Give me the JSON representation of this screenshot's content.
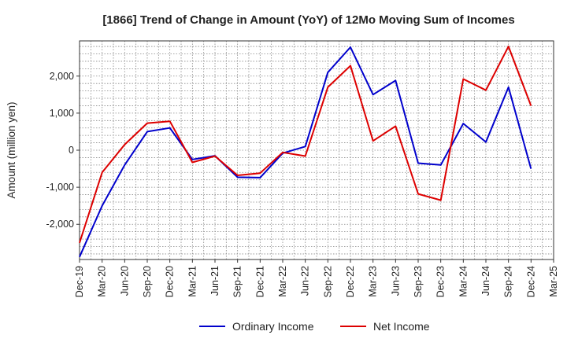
{
  "chart_data": {
    "type": "line",
    "title": "[1866]  Trend of Change in Amount (YoY) of 12Mo Moving Sum of Incomes",
    "ylabel": "Amount (million yen)",
    "xlabel": "",
    "x": [
      "Dec-19",
      "Mar-20",
      "Jun-20",
      "Sep-20",
      "Dec-20",
      "Mar-21",
      "Jun-21",
      "Sep-21",
      "Dec-21",
      "Mar-22",
      "Jun-22",
      "Sep-22",
      "Dec-22",
      "Mar-23",
      "Jun-23",
      "Sep-23",
      "Dec-23",
      "Mar-24",
      "Jun-24",
      "Sep-24",
      "Dec-24",
      "Mar-25"
    ],
    "ylim": [
      -2950,
      2950
    ],
    "yticks": [
      -2000,
      -1000,
      0,
      1000,
      2000
    ],
    "ytick_labels": [
      "-2,000",
      "-1,000",
      "0",
      "1,000",
      "2,000"
    ],
    "grid": true,
    "legend_position": "bottom-center",
    "series": [
      {
        "name": "Ordinary Income",
        "color": "#0000cc",
        "values": [
          -2880,
          -1500,
          -400,
          500,
          600,
          -250,
          -150,
          -730,
          -740,
          -80,
          100,
          2100,
          2780,
          1500,
          1880,
          -350,
          -400,
          720,
          220,
          1700,
          -500,
          null
        ]
      },
      {
        "name": "Net Income",
        "color": "#dd0000",
        "values": [
          -2500,
          -600,
          150,
          730,
          780,
          -330,
          -160,
          -680,
          -620,
          -60,
          -160,
          1700,
          2280,
          250,
          650,
          -1180,
          -1350,
          1920,
          1620,
          2800,
          1200,
          null
        ]
      }
    ]
  }
}
